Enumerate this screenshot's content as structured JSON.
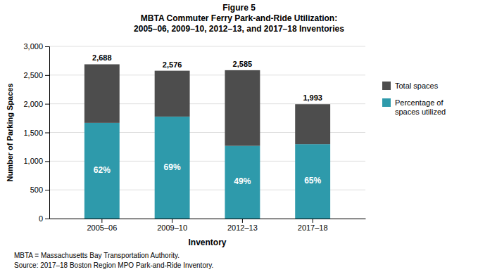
{
  "chart_data": {
    "type": "bar",
    "stacked": true,
    "title": "Figure 5\nMBTA Commuter Ferry Park-and-Ride Utilization:\n2005–06, 2009–10, 2012–13, and 2017–18 Inventories",
    "x_label": "Inventory",
    "y_label": "Number of Parking Spaces",
    "categories": [
      "2005–06",
      "2009–10",
      "2012–13",
      "2017–18"
    ],
    "series": [
      {
        "name": "Percentage of\nspaces utilized",
        "color": "#2e9aab",
        "values": [
          1667,
          1777,
          1267,
          1296
        ]
      },
      {
        "name": "Total spaces",
        "color": "#4d4d4d",
        "values": [
          1021,
          799,
          1318,
          697
        ]
      }
    ],
    "totals": [
      {
        "value": 2688,
        "label": "2,688"
      },
      {
        "value": 2576,
        "label": "2,576"
      },
      {
        "value": 2585,
        "label": "2,585"
      },
      {
        "value": 1993,
        "label": "1,993"
      }
    ],
    "annotations": [
      {
        "category": "2005–06",
        "text": "62%"
      },
      {
        "category": "2009–10",
        "text": "69%"
      },
      {
        "category": "2012–13",
        "text": "49%"
      },
      {
        "category": "2017–18",
        "text": "65%"
      }
    ],
    "footnotes": [
      "MBTA = Massachusetts Bay Transportation Authority.",
      "Source: 2017–18 Boston Region MPO Park-and-Ride Inventory."
    ],
    "ylim": [
      0,
      3000
    ],
    "yticks": [
      0,
      500,
      {
        "value": 1000,
        "label": "1,000"
      },
      {
        "value": 1500,
        "label": "1,500"
      },
      {
        "value": 2000,
        "label": "2,000"
      },
      {
        "value": 2500,
        "label": "2,500"
      },
      {
        "value": 3000,
        "label": "3,000"
      }
    ],
    "grid": true,
    "legend": "right"
  }
}
